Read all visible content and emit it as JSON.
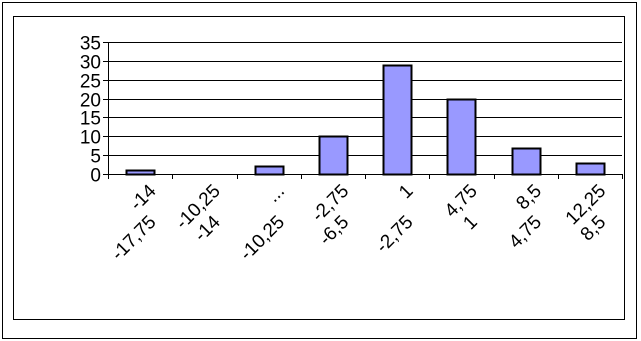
{
  "chart_data": {
    "type": "bar",
    "categories": [
      "-17,75 -14",
      "-14 -10,25",
      "-10,25 ...",
      "-6,5 -2,75",
      "-2,75 1",
      "1 4,75",
      "4,75 8,5",
      "8,5 12,25"
    ],
    "category_lines": [
      [
        "-17,75",
        "-14"
      ],
      [
        "-14",
        "-10,25"
      ],
      [
        "-10,25",
        "..."
      ],
      [
        "-6,5",
        "-2,75"
      ],
      [
        "-2,75",
        "1"
      ],
      [
        "1",
        "4,75"
      ],
      [
        "4,75",
        "8,5"
      ],
      [
        "8,5",
        "12,25"
      ]
    ],
    "values": [
      1,
      0,
      2,
      10,
      29,
      20,
      7,
      3
    ],
    "yticks": [
      0,
      5,
      10,
      15,
      20,
      25,
      30,
      35
    ],
    "ylim": [
      0,
      35
    ],
    "title": "",
    "xlabel": "",
    "ylabel": "",
    "grid": true,
    "legend": "none",
    "colors": {
      "bar_fill": "#9999ff",
      "bar_stroke": "#000000",
      "grid": "#000000",
      "background": "#ffffff",
      "frame": "#000000"
    }
  }
}
